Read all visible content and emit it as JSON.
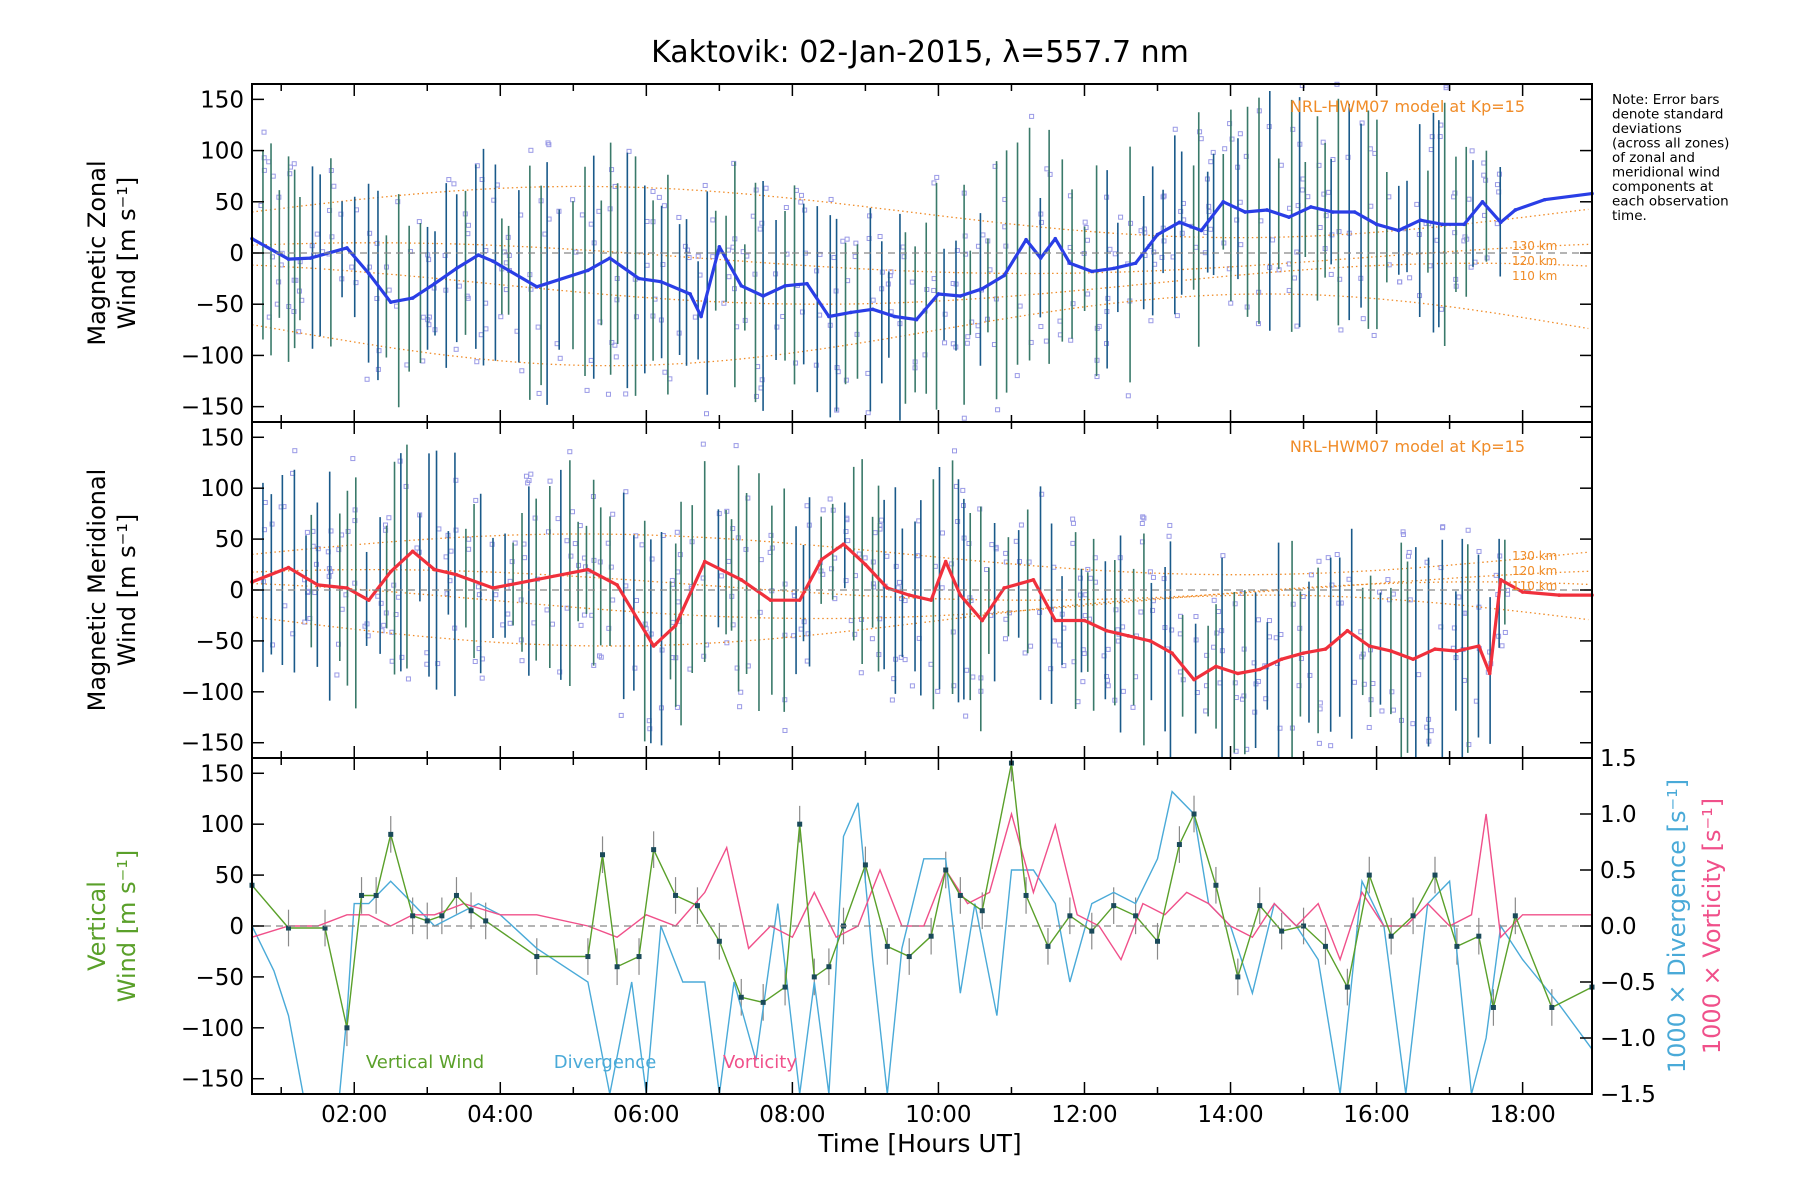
{
  "title": "Kaktovik: 02-Jan-2015, λ=557.7 nm",
  "note": [
    "Note: Error bars",
    "denote standard",
    "deviations",
    "(across all zones)",
    "of zonal and",
    "meridional wind",
    "components at",
    "each observation",
    "time."
  ],
  "xlabel": "Time [Hours UT]",
  "model_label": "NRL-HWM07 model at Kp=15",
  "altitude_labels": [
    "130 km",
    "120 km",
    "110 km"
  ],
  "colors": {
    "zonal": "#2a3ee6",
    "meridional": "#f0303c",
    "vertical": "#5aa02a",
    "divergence": "#4aaad8",
    "vorticity": "#f0508a",
    "model": "#f08c28",
    "scatter": "#9a9ae6",
    "errorbar": "#1a5a8a"
  },
  "chart_data": [
    {
      "type": "line",
      "panel": "zonal",
      "ylabel": [
        "Magnetic Zonal",
        "Wind [m s⁻¹]"
      ],
      "ylim": [
        -165,
        165
      ],
      "xlim": [
        0.6,
        18.95
      ],
      "xticks": [
        "02:00",
        "04:00",
        "06:00",
        "08:00",
        "10:00",
        "12:00",
        "14:00",
        "16:00",
        "18:00"
      ],
      "yticks": [
        -150,
        -100,
        -50,
        0,
        50,
        100,
        150
      ],
      "series": [
        {
          "x": [
            0.6,
            1.1,
            1.4,
            1.9,
            2.2,
            2.5,
            2.8,
            3.1,
            3.4,
            3.7,
            3.9,
            4.5,
            5.2,
            5.5,
            5.9,
            6.2,
            6.6,
            6.75,
            7.0,
            7.3,
            7.6,
            7.9,
            8.2,
            8.5,
            8.8,
            9.1,
            9.4,
            9.7,
            10.0,
            10.3,
            10.6,
            10.9,
            11.2,
            11.4,
            11.6,
            11.8,
            12.1,
            12.4,
            12.7,
            13.0,
            13.3,
            13.6,
            13.9,
            14.2,
            14.5,
            14.8,
            15.1,
            15.4,
            15.7,
            16.0,
            16.3,
            16.6,
            16.9,
            17.2,
            17.45,
            17.7,
            17.9,
            18.3,
            18.95
          ],
          "values": [
            14,
            -6,
            -5,
            5,
            -20,
            -48,
            -44,
            -30,
            -15,
            -2,
            -8,
            -33,
            -17,
            -5,
            -25,
            -28,
            -40,
            -62,
            6,
            -32,
            -42,
            -32,
            -30,
            -62,
            -58,
            -55,
            -62,
            -65,
            -40,
            -42,
            -35,
            -22,
            13,
            -5,
            14,
            -10,
            -18,
            -15,
            -10,
            18,
            30,
            22,
            50,
            40,
            42,
            35,
            45,
            40,
            40,
            28,
            22,
            32,
            28,
            28,
            50,
            30,
            42,
            52,
            58
          ]
        }
      ]
    },
    {
      "type": "line",
      "panel": "meridional",
      "ylabel": [
        "Magnetic Meridional",
        "Wind [m s⁻¹]"
      ],
      "ylim": [
        -165,
        165
      ],
      "xlim": [
        0.6,
        18.95
      ],
      "yticks": [
        -150,
        -100,
        -50,
        0,
        50,
        100,
        150
      ],
      "series": [
        {
          "x": [
            0.6,
            1.1,
            1.5,
            1.9,
            2.2,
            2.5,
            2.8,
            3.1,
            3.4,
            3.9,
            5.2,
            5.6,
            6.1,
            6.4,
            6.8,
            7.3,
            7.7,
            8.1,
            8.4,
            8.7,
            9.0,
            9.3,
            9.6,
            9.9,
            10.1,
            10.3,
            10.6,
            10.9,
            11.3,
            11.6,
            12.0,
            12.3,
            12.6,
            12.9,
            13.2,
            13.5,
            13.8,
            14.1,
            14.4,
            14.7,
            15.0,
            15.3,
            15.6,
            15.9,
            16.2,
            16.5,
            16.8,
            17.1,
            17.4,
            17.55,
            17.7,
            18.0,
            18.5,
            18.95
          ],
          "values": [
            8,
            22,
            5,
            2,
            -10,
            18,
            38,
            20,
            15,
            2,
            20,
            5,
            -55,
            -35,
            28,
            10,
            -10,
            -10,
            30,
            45,
            25,
            2,
            -5,
            -10,
            28,
            -5,
            -30,
            2,
            10,
            -30,
            -30,
            -40,
            -45,
            -50,
            -62,
            -88,
            -75,
            -82,
            -78,
            -68,
            -62,
            -58,
            -40,
            -55,
            -60,
            -68,
            -58,
            -60,
            -55,
            -82,
            10,
            -2,
            -5,
            -5
          ]
        }
      ]
    },
    {
      "type": "line",
      "panel": "vertical",
      "ylabel": [
        "Vertical",
        "Wind [m s⁻¹]"
      ],
      "ylabel_right_div": "1000 × Divergence [s⁻¹]",
      "ylabel_right_vort": "1000 × Vorticity [s⁻¹]",
      "ylim": [
        -165,
        165
      ],
      "y2lim": [
        -1.5,
        1.5
      ],
      "yticks": [
        -150,
        -100,
        -50,
        0,
        50,
        100,
        150
      ],
      "y2ticks": [
        "-1.5",
        "-1.0",
        "-0.5",
        "0.0",
        "0.5",
        "1.0",
        "1.5"
      ],
      "legend": [
        "Vertical Wind",
        "Divergence",
        "Vorticity"
      ],
      "series": [
        {
          "name": "Vertical Wind",
          "x": [
            0.6,
            1.1,
            1.6,
            1.9,
            2.1,
            2.3,
            2.5,
            2.8,
            3.0,
            3.2,
            3.4,
            3.6,
            3.8,
            4.5,
            5.2,
            5.4,
            5.6,
            5.9,
            6.1,
            6.4,
            6.7,
            7.0,
            7.3,
            7.6,
            7.9,
            8.1,
            8.3,
            8.5,
            8.7,
            9.0,
            9.3,
            9.6,
            9.9,
            10.1,
            10.3,
            10.6,
            11.0,
            11.2,
            11.5,
            11.8,
            12.1,
            12.4,
            12.7,
            13.0,
            13.3,
            13.5,
            13.8,
            14.1,
            14.4,
            14.7,
            15.0,
            15.3,
            15.6,
            15.9,
            16.2,
            16.5,
            16.8,
            17.1,
            17.4,
            17.6,
            17.9,
            18.4,
            18.95
          ],
          "values": [
            40,
            -2,
            -2,
            -100,
            30,
            30,
            90,
            10,
            5,
            10,
            30,
            15,
            5,
            -30,
            -30,
            70,
            -40,
            -30,
            75,
            30,
            20,
            -15,
            -70,
            -75,
            -60,
            100,
            -50,
            -40,
            0,
            60,
            -20,
            -30,
            -10,
            55,
            30,
            15,
            160,
            30,
            -20,
            10,
            -5,
            20,
            10,
            -15,
            80,
            110,
            40,
            -50,
            20,
            -5,
            0,
            -20,
            -60,
            50,
            -10,
            10,
            50,
            -20,
            -10,
            -80,
            10,
            -80,
            -60
          ]
        },
        {
          "name": "Divergence",
          "x": [
            0.6,
            0.9,
            1.1,
            1.3,
            1.5,
            1.8,
            1.9,
            2.0,
            2.2,
            2.5,
            2.8,
            3.1,
            3.4,
            3.7,
            4.0,
            4.5,
            5.2,
            5.5,
            5.8,
            6.0,
            6.2,
            6.5,
            6.8,
            7.0,
            7.2,
            7.5,
            7.8,
            8.1,
            8.3,
            8.5,
            8.7,
            8.9,
            9.1,
            9.3,
            9.5,
            9.8,
            10.1,
            10.3,
            10.5,
            10.8,
            11.0,
            11.3,
            11.6,
            11.8,
            12.1,
            12.4,
            12.7,
            13.0,
            13.2,
            13.5,
            13.7,
            14.0,
            14.3,
            14.6,
            14.9,
            15.2,
            15.5,
            15.8,
            16.1,
            16.4,
            16.7,
            17.0,
            17.3,
            17.5,
            17.7,
            18.0,
            18.5,
            18.95
          ],
          "values": [
            0.0,
            -0.4,
            -0.8,
            -1.5,
            -1.6,
            -1.5,
            -0.8,
            0.2,
            0.2,
            0.4,
            0.2,
            0.0,
            0.1,
            0.2,
            0.1,
            -0.2,
            -0.5,
            -1.5,
            -0.5,
            -1.6,
            0.0,
            -0.5,
            -0.5,
            -1.6,
            -0.5,
            -1.2,
            0.2,
            -1.6,
            -0.5,
            -1.6,
            0.8,
            1.1,
            -0.3,
            -1.6,
            -0.2,
            0.6,
            0.6,
            -0.6,
            0.2,
            -0.8,
            0.5,
            0.5,
            0.2,
            -0.5,
            0.2,
            0.3,
            0.2,
            0.6,
            1.2,
            1.0,
            0.2,
            0.0,
            -0.6,
            0.2,
            0.0,
            -0.3,
            -1.6,
            0.4,
            0.0,
            -1.5,
            0.2,
            0.4,
            -1.6,
            -1.0,
            0.0,
            -0.3,
            -0.7,
            -1.1
          ]
        },
        {
          "name": "Vorticity",
          "x": [
            0.6,
            1.1,
            1.5,
            1.9,
            2.2,
            2.5,
            2.8,
            3.1,
            3.5,
            4.0,
            4.5,
            5.2,
            5.6,
            6.0,
            6.4,
            6.8,
            7.1,
            7.4,
            7.7,
            8.0,
            8.3,
            8.6,
            8.9,
            9.2,
            9.5,
            9.8,
            10.1,
            10.4,
            10.7,
            11.0,
            11.3,
            11.6,
            11.9,
            12.2,
            12.5,
            12.8,
            13.1,
            13.4,
            13.7,
            14.0,
            14.3,
            14.6,
            14.9,
            15.2,
            15.5,
            15.8,
            16.1,
            16.4,
            16.7,
            17.0,
            17.3,
            17.5,
            17.7,
            18.0,
            18.95
          ],
          "values": [
            -0.1,
            0.0,
            0.0,
            0.1,
            0.1,
            0.0,
            0.1,
            0.1,
            0.2,
            0.1,
            0.1,
            0.0,
            -0.1,
            0.1,
            0.0,
            0.3,
            0.7,
            -0.2,
            0.0,
            -0.1,
            0.3,
            -0.1,
            0.0,
            0.5,
            0.0,
            0.0,
            0.5,
            0.2,
            0.3,
            1.0,
            0.3,
            0.9,
            0.1,
            0.0,
            -0.3,
            0.2,
            0.1,
            0.3,
            0.2,
            0.0,
            -0.1,
            0.2,
            0.0,
            0.2,
            -0.3,
            0.3,
            0.0,
            0.0,
            0.2,
            0.0,
            0.1,
            1.0,
            -0.1,
            0.1,
            0.1
          ]
        }
      ]
    }
  ]
}
